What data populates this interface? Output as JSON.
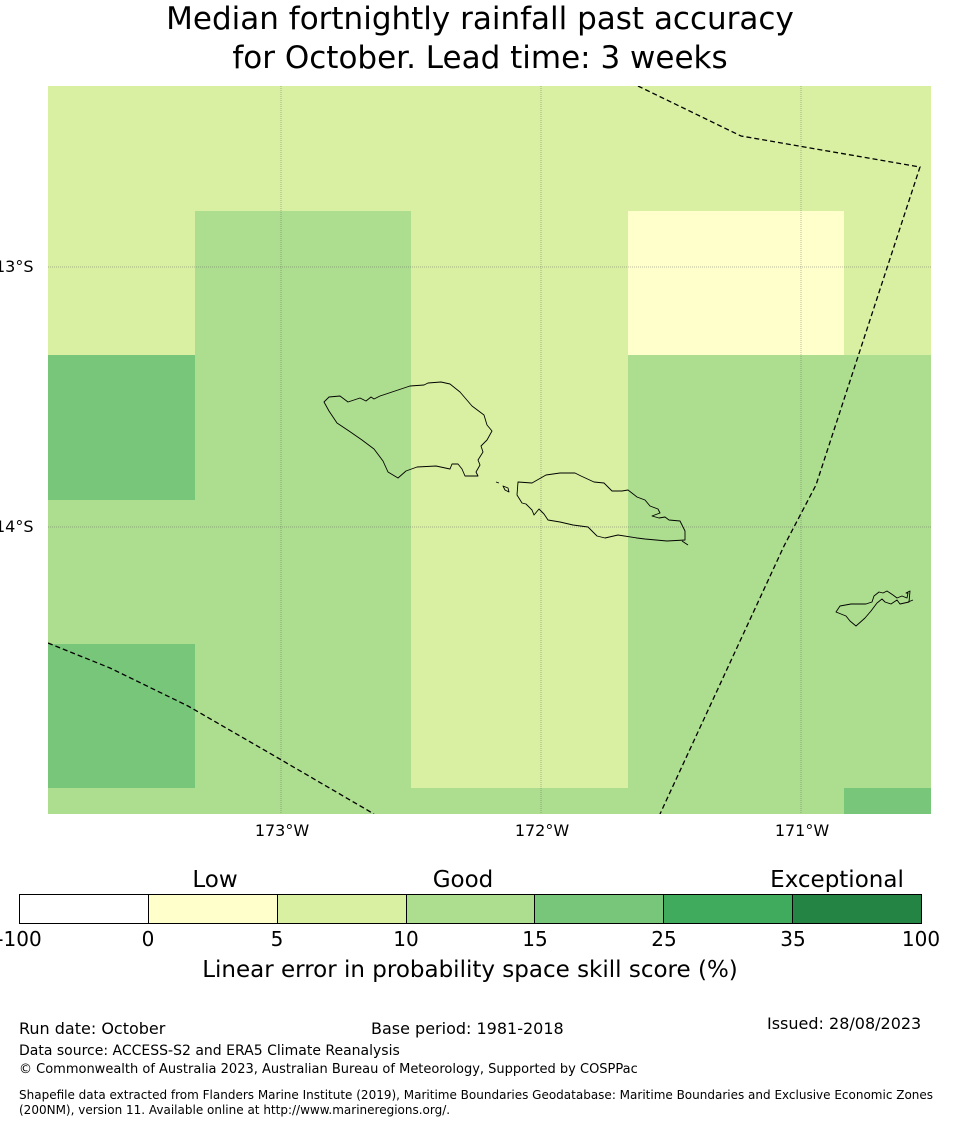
{
  "title": {
    "line1": "Median fortnightly rainfall past accuracy",
    "line2": "for October. Lead time: 3 weeks"
  },
  "map": {
    "lat_labels": [
      "13°S",
      "14°S"
    ],
    "lon_labels": [
      "173°W",
      "172°W",
      "171°W"
    ],
    "grid_values_pct_band": [
      [
        "5-10",
        "5-10",
        "5-10",
        "5-10",
        "5-10",
        "5-10",
        "5-10",
        "5-10"
      ],
      [
        "5-10",
        "10-15",
        "10-15",
        "5-10",
        "5-10",
        "0-5",
        "0-5",
        "5-10"
      ],
      [
        "15-25",
        "10-15",
        "10-15",
        "5-10",
        "5-10",
        "10-15",
        "10-15",
        "10-15"
      ],
      [
        "10-15",
        "10-15",
        "10-15",
        "5-10",
        "5-10",
        "10-15",
        "10-15",
        "10-15"
      ],
      [
        "15-25",
        "10-15",
        "10-15",
        "5-10",
        "5-10",
        "10-15",
        "10-15",
        "10-15"
      ],
      [
        "10-15",
        "10-15",
        "10-15",
        "10-15",
        "10-15",
        "10-15",
        "10-15",
        "15-25"
      ]
    ],
    "features": [
      "samoa-coastline",
      "american-samoa-coastline",
      "eez-boundary-dashed"
    ]
  },
  "legend": {
    "categories": [
      "Low",
      "Good",
      "Exceptional"
    ],
    "ticks": [
      "-100",
      "0",
      "5",
      "10",
      "15",
      "25",
      "35",
      "100"
    ],
    "colors": [
      "#ffffff",
      "#ffffcc",
      "#d9f0a3",
      "#addd8e",
      "#78c679",
      "#41ab5d",
      "#238443"
    ],
    "label": "Linear error in probability space skill score (%)"
  },
  "footer": {
    "run_date": "Run date: October",
    "base_period": "Base period: 1981-2018",
    "issued": "Issued: 28/08/2023",
    "data_source": "Data source: ACCESS-S2 and ERA5 Climate Reanalysis",
    "copyright": "© Commonwealth of Australia 2023, Australian Bureau of Meteorology, Supported by COSPPac",
    "shapefile_line1": "Shapefile data extracted from Flanders Marine Institute (2019), Maritime Boundaries Geodatabase: Maritime Boundaries and Exclusive Economic Zones",
    "shapefile_line2": "(200NM), version 11. Available online at http://www.marineregions.org/."
  }
}
